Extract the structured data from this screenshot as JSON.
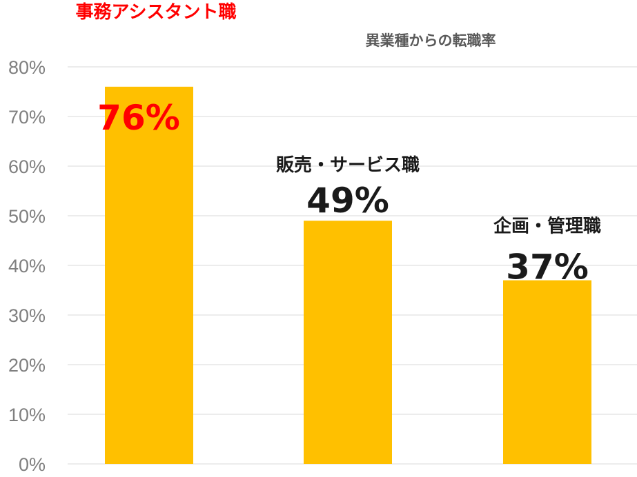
{
  "chart_data": {
    "type": "bar",
    "title": "異業種からの転職率",
    "categories": [
      "事務アシスタント職",
      "販売・サービス職",
      "企画・管理職"
    ],
    "values": [
      76,
      49,
      37
    ],
    "value_labels": [
      "76%",
      "49%",
      "37%"
    ],
    "ylim": [
      0,
      80
    ],
    "yticks": [
      0,
      10,
      20,
      30,
      40,
      50,
      60,
      70,
      80
    ],
    "ytick_labels": [
      "0%",
      "10%",
      "20%",
      "30%",
      "40%",
      "50%",
      "60%",
      "70%",
      "80%"
    ],
    "grid": true,
    "legend": "none",
    "colors": {
      "bar": "#FFC000",
      "highlight_label": "#FF0000",
      "label": "#1a1a1a",
      "grid": "#d9d9d9",
      "tick": "#7f7f7f",
      "title": "#595959"
    },
    "highlight_index": 0
  }
}
